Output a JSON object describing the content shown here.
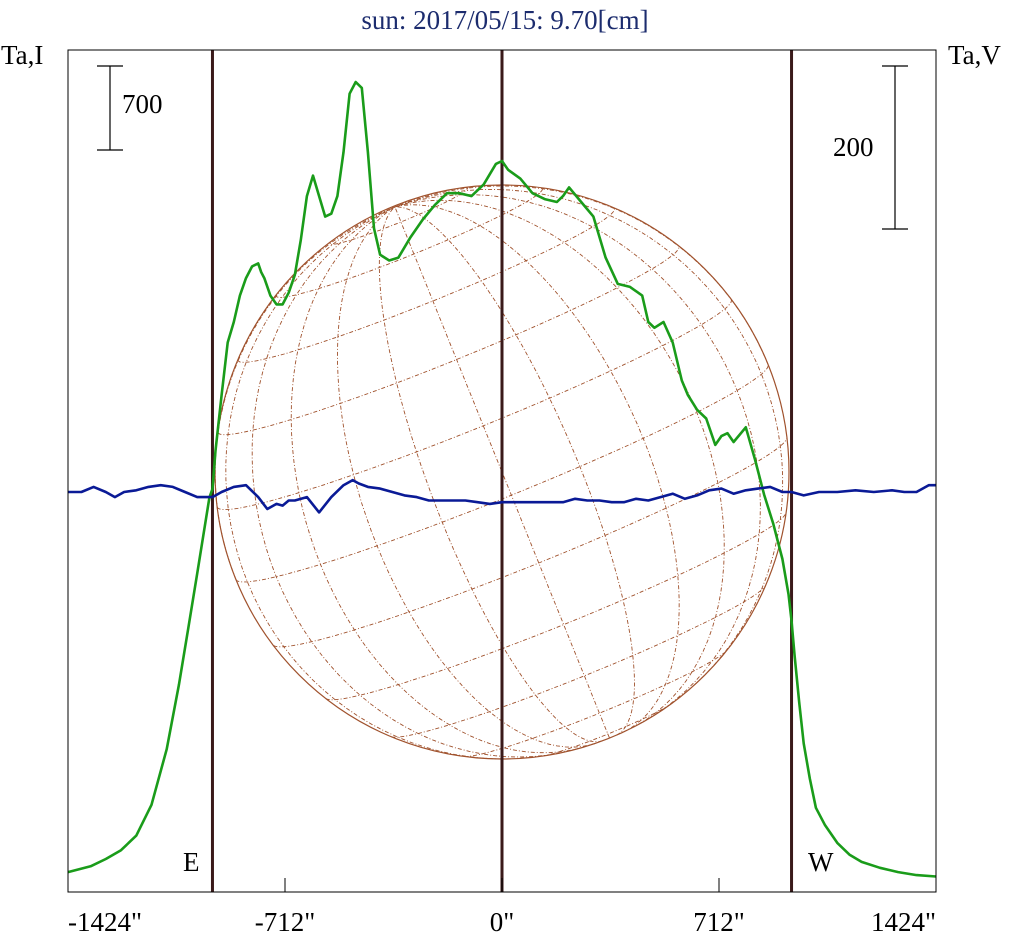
{
  "chart_data": {
    "type": "line",
    "title": "sun: 2017/05/15: 9.70[cm]",
    "ylabel_left": "Ta,I",
    "ylabel_right": "Ta,V",
    "scale_left_label": "700",
    "scale_right_label": "200",
    "limb_labels": {
      "east": "E",
      "west": "W"
    },
    "x_ticks": [
      {
        "value": -1424,
        "label": "-1424\""
      },
      {
        "value": -712,
        "label": "-712\""
      },
      {
        "value": 0,
        "label": "0\""
      },
      {
        "value": 712,
        "label": "712\""
      },
      {
        "value": 1424,
        "label": "1424\""
      }
    ],
    "xlim": [
      -1424,
      1424
    ],
    "vertical_markers": [
      -950,
      0,
      950
    ],
    "colors": {
      "stokes_i": "#1a9c1a",
      "stokes_v": "#0a1a96",
      "disk": "#a0522d",
      "markers": "#3a1a1a",
      "title": "#1c2c6e"
    },
    "series": [
      {
        "id": "I",
        "color": "#1a9c1a",
        "x": [
          -1424,
          -1350,
          -1300,
          -1250,
          -1200,
          -1150,
          -1100,
          -1060,
          -1030,
          -1000,
          -980,
          -960,
          -950,
          -940,
          -920,
          -900,
          -880,
          -860,
          -840,
          -820,
          -800,
          -790,
          -780,
          -760,
          -740,
          -720,
          -700,
          -680,
          -660,
          -640,
          -620,
          -600,
          -580,
          -560,
          -540,
          -520,
          -500,
          -480,
          -460,
          -440,
          -420,
          -400,
          -370,
          -340,
          -300,
          -260,
          -220,
          -180,
          -140,
          -100,
          -60,
          -20,
          0,
          20,
          60,
          100,
          140,
          180,
          200,
          220,
          260,
          300,
          340,
          380,
          420,
          460,
          480,
          500,
          530,
          560,
          590,
          610,
          640,
          670,
          700,
          720,
          740,
          760,
          800,
          830,
          860,
          890,
          920,
          940,
          950,
          960,
          975,
          990,
          1010,
          1030,
          1060,
          1100,
          1140,
          1180,
          1240,
          1300,
          1360,
          1424
        ],
        "y": [
          20,
          40,
          65,
          95,
          145,
          250,
          440,
          660,
          850,
          1040,
          1170,
          1300,
          1330,
          1460,
          1650,
          1830,
          1900,
          1990,
          2050,
          2090,
          2100,
          2070,
          2050,
          1990,
          1960,
          1960,
          2000,
          2060,
          2180,
          2330,
          2400,
          2330,
          2260,
          2270,
          2330,
          2480,
          2680,
          2720,
          2700,
          2480,
          2220,
          2130,
          2110,
          2120,
          2190,
          2250,
          2300,
          2340,
          2340,
          2330,
          2370,
          2440,
          2450,
          2420,
          2390,
          2340,
          2320,
          2310,
          2330,
          2360,
          2310,
          2260,
          2120,
          2030,
          2020,
          1990,
          1900,
          1880,
          1900,
          1830,
          1700,
          1650,
          1600,
          1570,
          1480,
          1510,
          1520,
          1490,
          1540,
          1430,
          1310,
          1210,
          1090,
          970,
          880,
          760,
          600,
          460,
          340,
          240,
          180,
          120,
          80,
          55,
          35,
          20,
          10,
          5
        ]
      },
      {
        "id": "V",
        "color": "#0a1a96",
        "x": [
          -1424,
          -1380,
          -1340,
          -1300,
          -1270,
          -1240,
          -1200,
          -1160,
          -1120,
          -1080,
          -1040,
          -1000,
          -980,
          -950,
          -920,
          -880,
          -840,
          -800,
          -770,
          -740,
          -720,
          -700,
          -680,
          -640,
          -600,
          -560,
          -520,
          -490,
          -470,
          -440,
          -400,
          -360,
          -320,
          -280,
          -240,
          -200,
          -160,
          -120,
          -80,
          -40,
          0,
          40,
          80,
          120,
          160,
          200,
          240,
          280,
          320,
          360,
          400,
          440,
          480,
          520,
          560,
          600,
          640,
          680,
          720,
          760,
          800,
          840,
          880,
          920,
          950,
          990,
          1040,
          1100,
          1160,
          1220,
          1280,
          1320,
          1360,
          1400,
          1424
        ],
        "y": [
          0,
          0,
          3,
          0,
          -3,
          0,
          1,
          3,
          4,
          3,
          0,
          -3,
          -3,
          -3,
          0,
          3,
          4,
          -3,
          -10,
          -7,
          -8,
          -5,
          -5,
          -3,
          -12,
          -3,
          4,
          7,
          5,
          3,
          2,
          0,
          -2,
          -3,
          -5,
          -5,
          -5,
          -5,
          -6,
          -7,
          -6,
          -6,
          -6,
          -6,
          -6,
          -6,
          -4,
          -5,
          -5,
          -6,
          -6,
          -4,
          -5,
          -3,
          -1,
          -4,
          -2,
          1,
          2,
          -1,
          1,
          2,
          3,
          0,
          0,
          -2,
          0,
          0,
          1,
          0,
          1,
          0,
          0,
          4,
          4
        ]
      }
    ]
  }
}
